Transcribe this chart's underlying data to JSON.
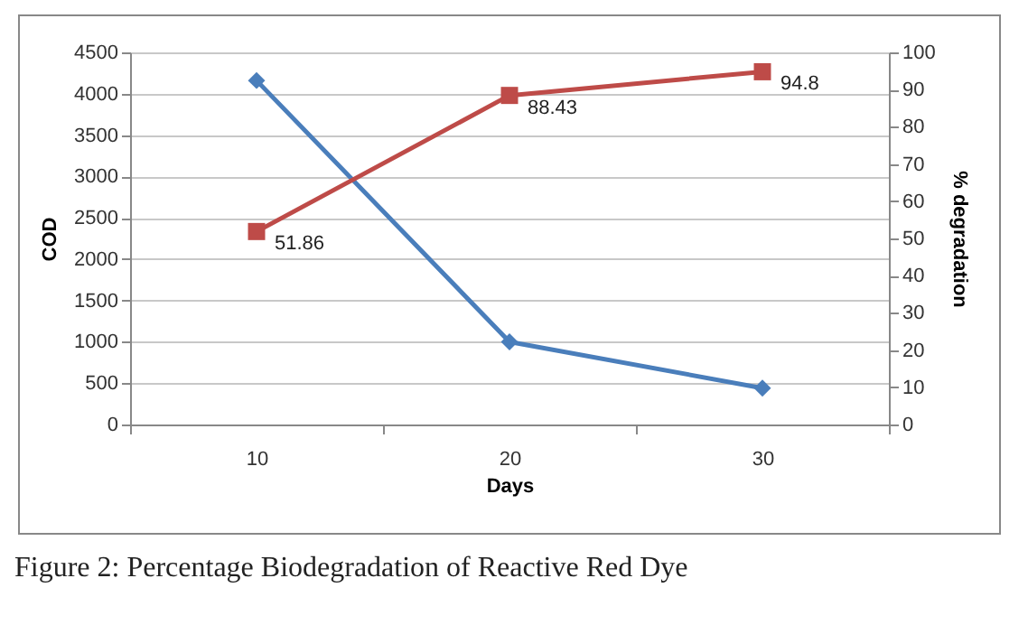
{
  "chart_data": {
    "type": "line",
    "xlabel": "Days",
    "ylabel": "COD",
    "y2label": "% degradation",
    "categories": [
      "10",
      "20",
      "30"
    ],
    "series": [
      {
        "color": "#4a7ebb",
        "marker": "diamond",
        "values": [
          4160,
          1000,
          440
        ]
      },
      {
        "color": "#be4b48",
        "marker": "square",
        "axis": "y2",
        "values": [
          51.86,
          88.43,
          94.8
        ],
        "value_labels": [
          "51.86",
          "88.43",
          "94.8"
        ]
      }
    ],
    "ylim": [
      0,
      4500
    ],
    "yticks": [
      0,
      500,
      1000,
      1500,
      2000,
      2500,
      3000,
      3500,
      4000,
      4500
    ],
    "y2lim": [
      0,
      100
    ],
    "y2ticks": [
      0,
      10,
      20,
      30,
      40,
      50,
      60,
      70,
      80,
      90,
      100
    ],
    "grid": "y",
    "annotations": [
      "Figure 2:  Percentage Biodegradation of Reactive Red Dye"
    ]
  }
}
